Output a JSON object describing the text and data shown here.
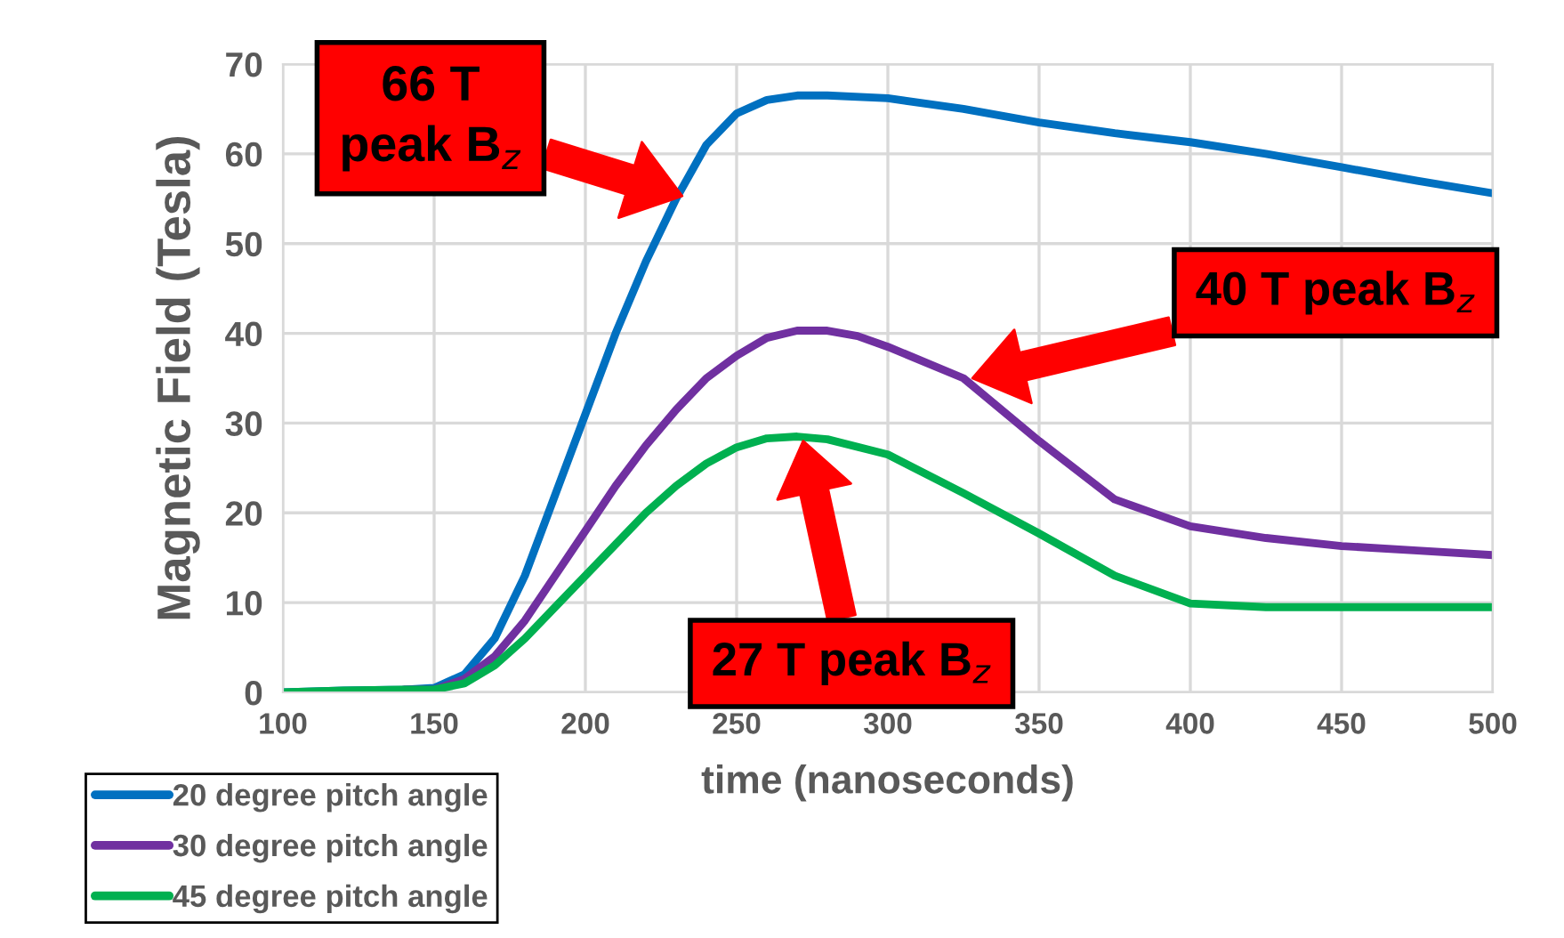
{
  "chart_data": {
    "type": "line",
    "xlabel": "time (nanoseconds)",
    "ylabel": "Magnetic Field (Tesla)",
    "xlim": [
      100,
      500
    ],
    "xticks": [
      100,
      150,
      200,
      250,
      300,
      350,
      400,
      450,
      500
    ],
    "ylim": [
      0,
      70
    ],
    "yticks": [
      0,
      10,
      20,
      30,
      40,
      50,
      60,
      70
    ],
    "grid": true,
    "legend": "bottom left",
    "marker": "none",
    "line_style": "solid",
    "series": [
      {
        "name": "20 degree pitch angle",
        "color": "#0070c0",
        "x": [
          100,
          120,
          140,
          150,
          160,
          170,
          180,
          190,
          200,
          210,
          220,
          230,
          240,
          250,
          260,
          270,
          280,
          300,
          325,
          350,
          375,
          400,
          425,
          450,
          475,
          500
        ],
        "values": [
          0,
          0.2,
          0.3,
          0.5,
          2,
          6,
          13,
          22,
          31,
          40,
          48,
          55,
          61,
          64.5,
          66,
          66.5,
          66.5,
          66.2,
          65,
          63.5,
          62.3,
          61.3,
          60,
          58.5,
          57,
          55.6
        ]
      },
      {
        "name": "30 degree pitch angle",
        "color": "#7030a0",
        "x": [
          140,
          150,
          160,
          170,
          180,
          190,
          200,
          210,
          220,
          230,
          240,
          250,
          260,
          270,
          280,
          290,
          300,
          325,
          350,
          375,
          400,
          425,
          450,
          475,
          500
        ],
        "values": [
          0.3,
          0.3,
          1.5,
          4,
          8,
          13,
          18,
          23,
          27.5,
          31.5,
          35,
          37.5,
          39.5,
          40.3,
          40.3,
          39.7,
          38.5,
          35,
          28,
          21.5,
          18.5,
          17.2,
          16.3,
          15.8,
          15.3
        ]
      },
      {
        "name": "45 degree pitch angle",
        "color": "#00b050",
        "x": [
          100,
          120,
          140,
          150,
          160,
          170,
          180,
          190,
          200,
          210,
          220,
          230,
          240,
          250,
          260,
          270,
          280,
          300,
          325,
          350,
          375,
          400,
          425,
          450,
          475,
          500
        ],
        "values": [
          0,
          0.2,
          0.3,
          0.3,
          1,
          3,
          6,
          9.5,
          13,
          16.5,
          20,
          23,
          25.5,
          27.3,
          28.3,
          28.5,
          28.2,
          26.5,
          22.2,
          17.7,
          13,
          9.9,
          9.5,
          9.5,
          9.5,
          9.5
        ]
      }
    ],
    "annotations": [
      "66 T\npeak B$_{z}$",
      "40 T peak B$_{z}$",
      "27 T peak B$_{z}$"
    ]
  }
}
